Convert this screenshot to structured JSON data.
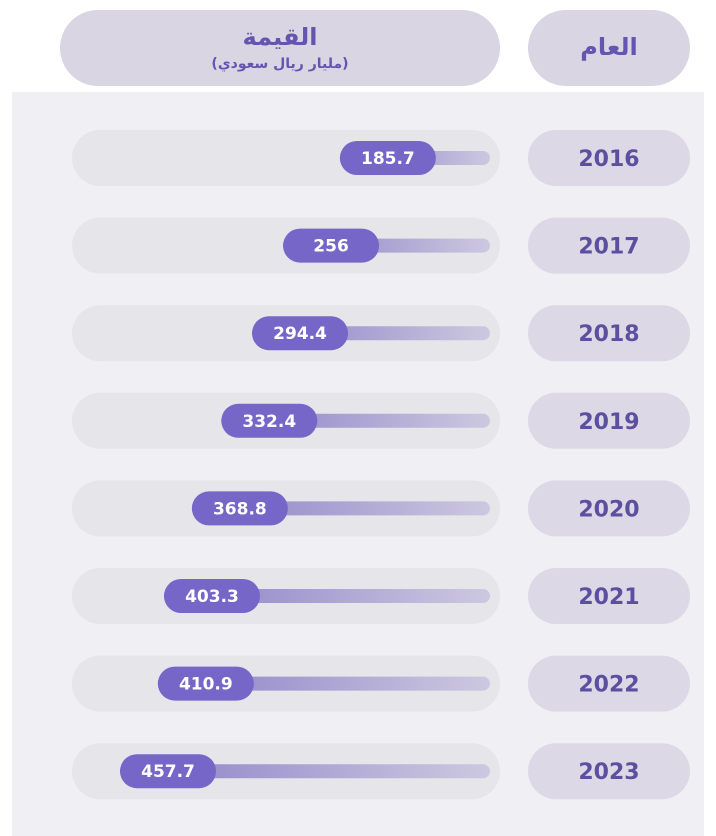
{
  "chart_data": {
    "type": "bar",
    "orientation": "horizontal",
    "category_header": "العام",
    "value_header": "القيمة",
    "value_unit": "(مليار ريال سعودي)",
    "categories": [
      "2016",
      "2017",
      "2018",
      "2019",
      "2020",
      "2021",
      "2022",
      "2023"
    ],
    "values": [
      185.7,
      256,
      294.4,
      332.4,
      368.8,
      403.3,
      410.9,
      457.7
    ],
    "color": "#7566c8"
  }
}
